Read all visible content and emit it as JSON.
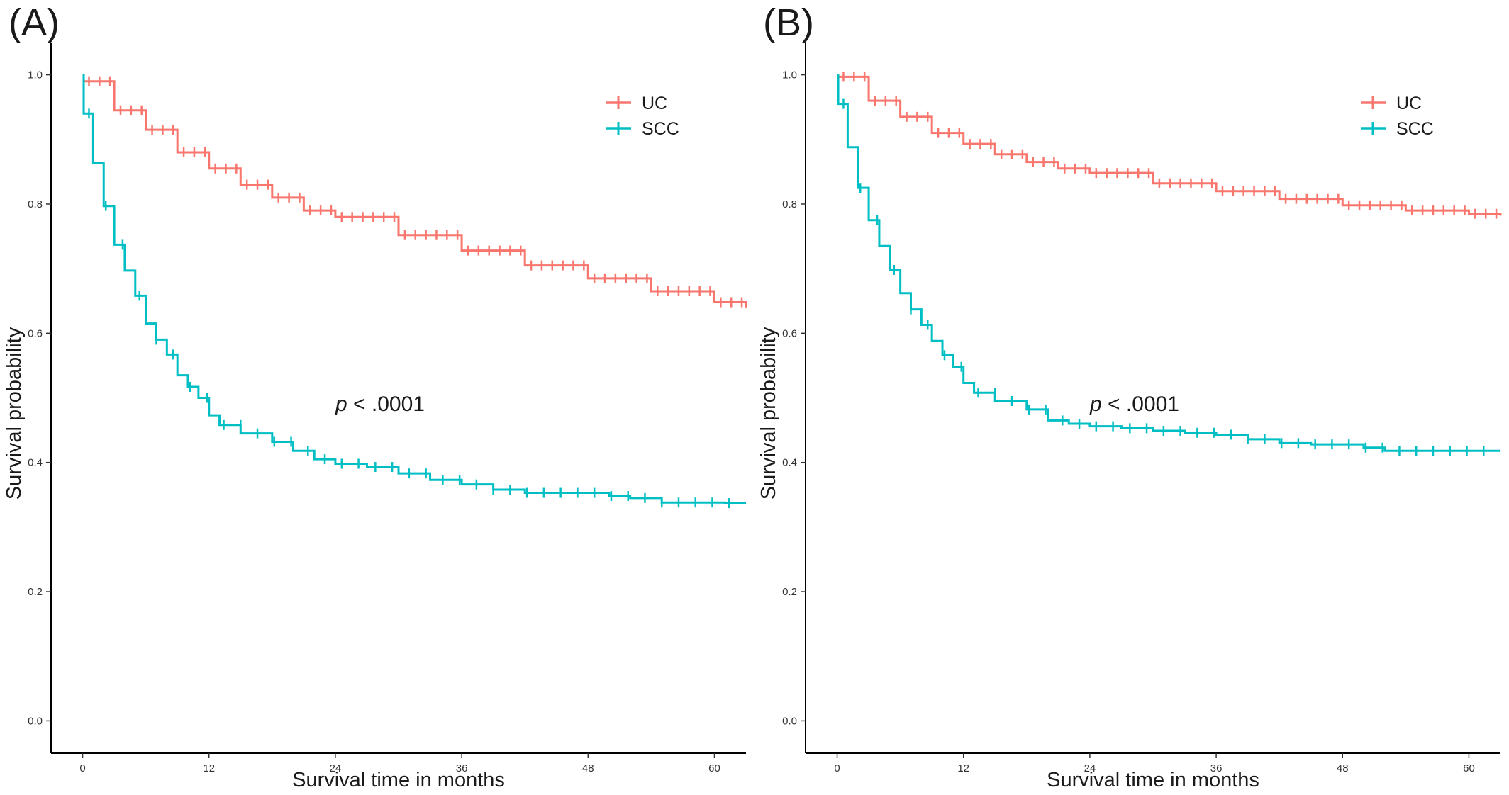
{
  "panels": [
    {
      "label": "(A)",
      "ylabel": "Survival probability",
      "xlabel": "Survival time in months",
      "pvalue": {
        "italic": "p",
        "rest": " < .0001"
      }
    },
    {
      "label": "(B)",
      "ylabel": "Survival probability",
      "xlabel": "Survival time in months",
      "pvalue": {
        "italic": "p",
        "rest": " < .0001"
      }
    }
  ],
  "chart_data": [
    {
      "type": "line",
      "step": true,
      "title": "",
      "xlabel": "Survival time in months",
      "ylabel": "Survival probability",
      "xlim": [
        -3,
        63
      ],
      "ylim": [
        -0.05,
        1.05
      ],
      "x_ticks": [
        0,
        12,
        24,
        36,
        48,
        60
      ],
      "x_tick_labels": [
        "0",
        "12",
        "24",
        "36",
        "48",
        "60"
      ],
      "y_ticks": [
        0.0,
        0.2,
        0.4,
        0.6,
        0.8,
        1.0
      ],
      "y_tick_labels": [
        "0.0",
        "0.2",
        "0.4",
        "0.6",
        "0.8",
        "1.0"
      ],
      "grid": false,
      "legend_position": "top-right",
      "annotation": "p < .0001",
      "series": [
        {
          "name": "UC",
          "color": "#F8766D",
          "censor_marks": true,
          "x": [
            0,
            3,
            6,
            9,
            12,
            15,
            18,
            21,
            24,
            30,
            36,
            42,
            48,
            54,
            60,
            63
          ],
          "y": [
            0.99,
            0.945,
            0.915,
            0.88,
            0.855,
            0.83,
            0.81,
            0.79,
            0.78,
            0.752,
            0.728,
            0.705,
            0.685,
            0.665,
            0.648,
            0.64
          ]
        },
        {
          "name": "SCC",
          "color": "#00BFC4",
          "censor_marks": true,
          "x": [
            0,
            0.1,
            1,
            2,
            3,
            4,
            5,
            6,
            7,
            8,
            9,
            10,
            11,
            12,
            13,
            15,
            18,
            20,
            22,
            24,
            27,
            30,
            33,
            36,
            39,
            42,
            45,
            48,
            50,
            52,
            55,
            58,
            61
          ],
          "y": [
            1.0,
            0.94,
            0.863,
            0.797,
            0.737,
            0.697,
            0.658,
            0.615,
            0.59,
            0.567,
            0.535,
            0.517,
            0.5,
            0.473,
            0.458,
            0.445,
            0.432,
            0.418,
            0.405,
            0.398,
            0.393,
            0.383,
            0.373,
            0.366,
            0.358,
            0.353,
            0.353,
            0.353,
            0.348,
            0.345,
            0.338,
            0.338,
            0.337
          ]
        }
      ]
    },
    {
      "type": "line",
      "step": true,
      "title": "",
      "xlabel": "Survival time in months",
      "ylabel": "Survival probability",
      "xlim": [
        -3,
        63
      ],
      "ylim": [
        -0.05,
        1.05
      ],
      "x_ticks": [
        0,
        12,
        24,
        36,
        48,
        60
      ],
      "x_tick_labels": [
        "0",
        "12",
        "24",
        "36",
        "48",
        "60"
      ],
      "y_ticks": [
        0.0,
        0.2,
        0.4,
        0.6,
        0.8,
        1.0
      ],
      "y_tick_labels": [
        "0.0",
        "0.2",
        "0.4",
        "0.6",
        "0.8",
        "1.0"
      ],
      "grid": false,
      "legend_position": "top-right",
      "annotation": "p < .0001",
      "series": [
        {
          "name": "UC",
          "color": "#F8766D",
          "censor_marks": true,
          "x": [
            0,
            3,
            6,
            9,
            12,
            15,
            18,
            21,
            24,
            30,
            36,
            42,
            48,
            54,
            60,
            63
          ],
          "y": [
            0.997,
            0.96,
            0.935,
            0.91,
            0.893,
            0.877,
            0.865,
            0.855,
            0.848,
            0.832,
            0.82,
            0.808,
            0.798,
            0.79,
            0.785,
            0.782
          ]
        },
        {
          "name": "SCC",
          "color": "#00BFC4",
          "censor_marks": true,
          "x": [
            0,
            0.1,
            1,
            2,
            3,
            4,
            5,
            6,
            7,
            8,
            9,
            10,
            11,
            12,
            13,
            15,
            18,
            20,
            22,
            24,
            27,
            30,
            33,
            36,
            39,
            42,
            45,
            48,
            50,
            52,
            55,
            58,
            61
          ],
          "y": [
            1.0,
            0.955,
            0.888,
            0.825,
            0.775,
            0.735,
            0.698,
            0.662,
            0.637,
            0.613,
            0.588,
            0.566,
            0.548,
            0.523,
            0.508,
            0.495,
            0.482,
            0.465,
            0.46,
            0.456,
            0.453,
            0.449,
            0.446,
            0.443,
            0.436,
            0.43,
            0.428,
            0.428,
            0.423,
            0.418,
            0.418,
            0.418,
            0.418
          ]
        }
      ]
    }
  ]
}
